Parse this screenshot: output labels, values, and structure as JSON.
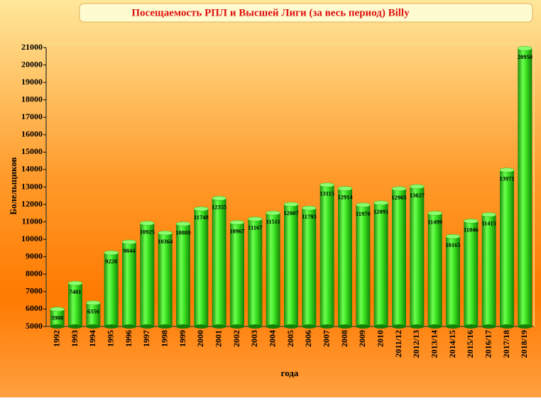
{
  "chart_data": {
    "type": "bar",
    "title": "Посещаемость РПЛ и Высшей Лиги (за весь период) Billy",
    "x_label": "года",
    "y_label": "Болельщиков",
    "categories": [
      "1992",
      "1993",
      "1994",
      "1995",
      "1996",
      "1997",
      "1998",
      "1999",
      "2000",
      "2001",
      "2002",
      "2003",
      "2004",
      "2005",
      "2006",
      "2007",
      "2008",
      "2009",
      "2010",
      "2011/12",
      "2012/13",
      "2013/14",
      "2014/15",
      "2015/16",
      "2016/17",
      "2017/18",
      "2018/19"
    ],
    "values": [
      5988,
      7481,
      6356,
      9228,
      9844,
      10925,
      10364,
      10889,
      11748,
      12355,
      10967,
      11167,
      11511,
      12007,
      11793,
      13115,
      12914,
      11970,
      12091,
      12905,
      13027,
      11499,
      10165,
      11046,
      11415,
      13971,
      20950
    ],
    "color": "#33e01a",
    "ylim": [
      5000,
      21000
    ],
    "yticks": [
      5000,
      6000,
      7000,
      8000,
      9000,
      10000,
      11000,
      12000,
      13000,
      14000,
      15000,
      16000,
      17000,
      18000,
      19000,
      20000,
      21000
    ],
    "grid": false
  }
}
